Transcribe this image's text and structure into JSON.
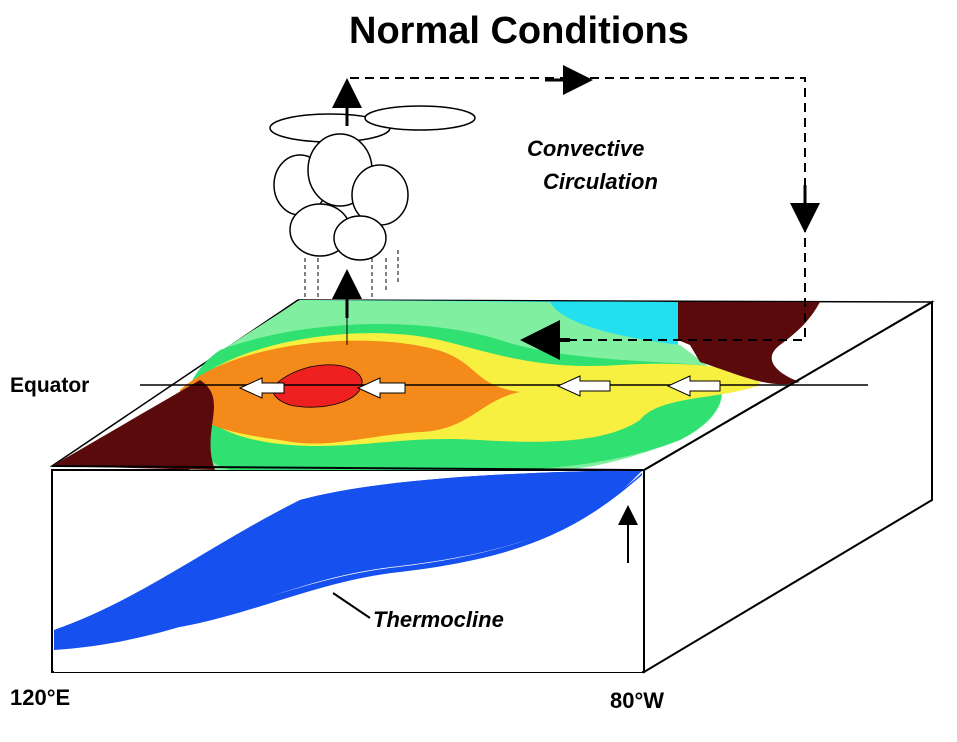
{
  "title": "Normal Conditions",
  "labels": {
    "convective_line1": "Convective",
    "convective_line2": "Circulation",
    "equator": "Equator",
    "thermocline": "Thermocline",
    "west_longitude": "120°E",
    "east_longitude": "80°W"
  },
  "colors": {
    "land": "#5a0a0a",
    "warmest": "#ee2020",
    "warm": "#f48a1a",
    "mild": "#f8f040",
    "cool": "#80f0a0",
    "cooler": "#30e070",
    "cold": "#22e0f0",
    "deep_water": "#1650ee"
  }
}
